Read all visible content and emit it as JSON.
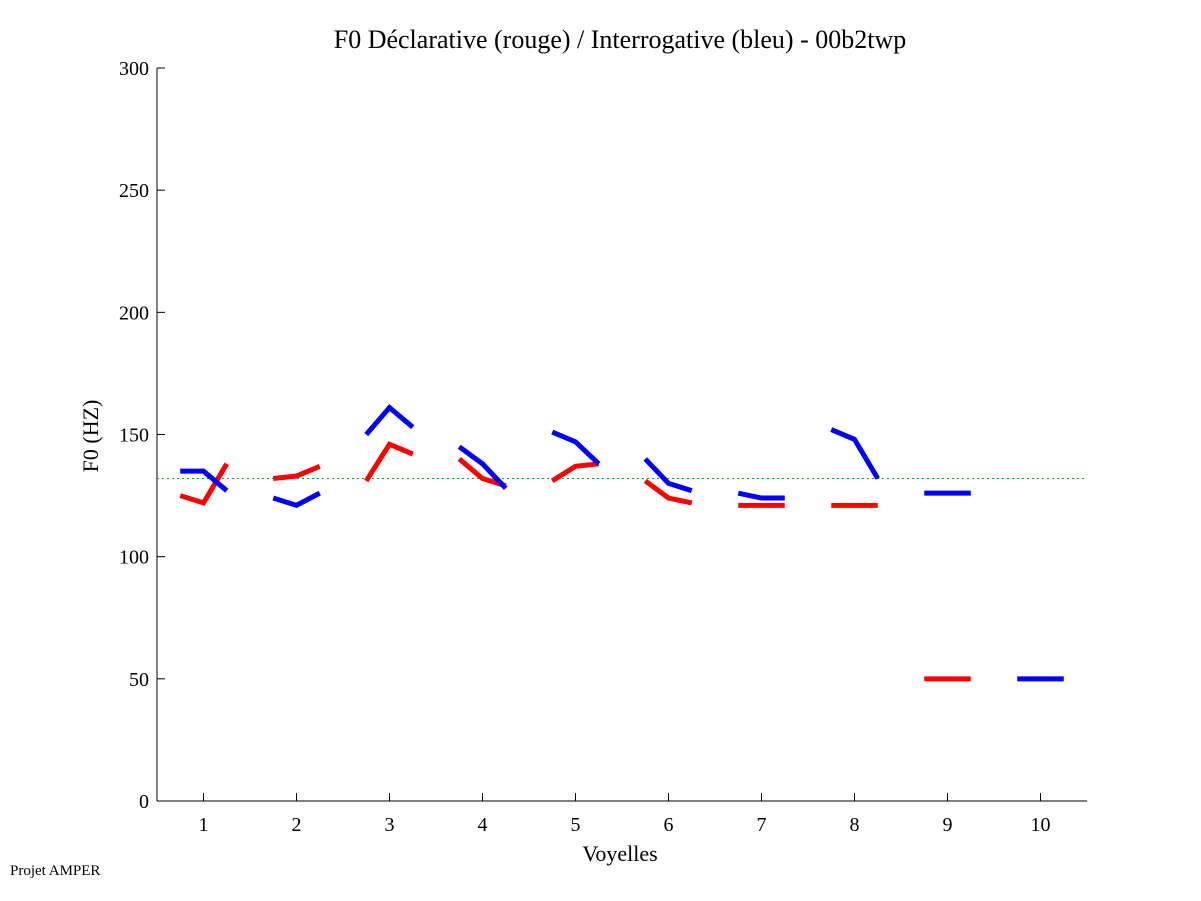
{
  "chart_data": {
    "type": "line",
    "title": "F0 Déclarative (rouge) / Interrogative (bleu) - 00b2twp",
    "xlabel": "Voyelles",
    "ylabel": "F0 (HZ)",
    "xlim": [
      0.5,
      10.5
    ],
    "ylim": [
      0,
      300
    ],
    "xticks": [
      1,
      2,
      3,
      4,
      5,
      6,
      7,
      8,
      9,
      10
    ],
    "yticks": [
      0,
      50,
      100,
      150,
      200,
      250,
      300
    ],
    "reference_line": {
      "y": 132,
      "color": "#00b000",
      "style": "dotted"
    },
    "grid": false,
    "series": [
      {
        "color": "#ff0000",
        "segments": [
          {
            "x": [
              0.75,
              1.0,
              1.25
            ],
            "y": [
              125,
              122,
              138
            ]
          },
          {
            "x": [
              1.75,
              2.0,
              2.25
            ],
            "y": [
              132,
              133,
              137
            ]
          },
          {
            "x": [
              2.75,
              3.0,
              3.25
            ],
            "y": [
              131,
              146,
              142
            ]
          },
          {
            "x": [
              3.75,
              4.0,
              4.25
            ],
            "y": [
              140,
              132,
              129
            ]
          },
          {
            "x": [
              4.75,
              5.0,
              5.25
            ],
            "y": [
              131,
              137,
              138
            ]
          },
          {
            "x": [
              5.75,
              6.0,
              6.25
            ],
            "y": [
              131,
              124,
              122
            ]
          },
          {
            "x": [
              6.75,
              7.0,
              7.25
            ],
            "y": [
              121,
              121,
              121
            ]
          },
          {
            "x": [
              7.75,
              8.0,
              8.25
            ],
            "y": [
              121,
              121,
              121
            ]
          },
          {
            "x": [
              8.75,
              9.0,
              9.25
            ],
            "y": [
              50,
              50,
              50
            ]
          }
        ]
      },
      {
        "color": "#0000ff",
        "segments": [
          {
            "x": [
              0.75,
              1.0,
              1.25
            ],
            "y": [
              135,
              135,
              127
            ]
          },
          {
            "x": [
              1.75,
              2.0,
              2.25
            ],
            "y": [
              124,
              121,
              126
            ]
          },
          {
            "x": [
              2.75,
              3.0,
              3.25
            ],
            "y": [
              150,
              161,
              153
            ]
          },
          {
            "x": [
              3.75,
              4.0,
              4.25
            ],
            "y": [
              145,
              138,
              128
            ]
          },
          {
            "x": [
              4.75,
              5.0,
              5.25
            ],
            "y": [
              151,
              147,
              138
            ]
          },
          {
            "x": [
              5.75,
              6.0,
              6.25
            ],
            "y": [
              140,
              130,
              127
            ]
          },
          {
            "x": [
              6.75,
              7.0,
              7.25
            ],
            "y": [
              126,
              124,
              124
            ]
          },
          {
            "x": [
              7.75,
              8.0,
              8.25
            ],
            "y": [
              152,
              148,
              132
            ]
          },
          {
            "x": [
              8.75,
              9.0,
              9.25
            ],
            "y": [
              126,
              126,
              126
            ]
          },
          {
            "x": [
              9.75,
              10.0,
              10.25
            ],
            "y": [
              50,
              50,
              50
            ]
          }
        ]
      }
    ]
  },
  "footer": {
    "text": "Projet AMPER"
  }
}
